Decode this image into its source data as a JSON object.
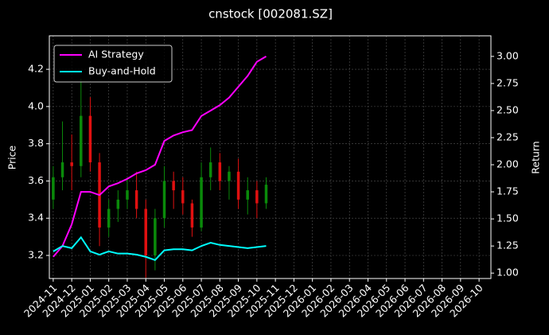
{
  "chart_data": {
    "type": "candlestick",
    "title": "cnstock [002081.SZ]",
    "ylabel": "Price",
    "y2label": "Return",
    "x": [
      0,
      0.5,
      1,
      1.5,
      2,
      2.5,
      3,
      3.5,
      4,
      4.5,
      5,
      5.5,
      6,
      6.5,
      7,
      7.5,
      8,
      8.5,
      9,
      9.5,
      10,
      10.5,
      11,
      11.5
    ],
    "open": [
      3.5,
      3.62,
      3.7,
      3.68,
      3.95,
      3.7,
      3.35,
      3.45,
      3.5,
      3.55,
      3.45,
      3.2,
      3.4,
      3.6,
      3.55,
      3.48,
      3.35,
      3.62,
      3.7,
      3.6,
      3.65,
      3.5,
      3.55,
      3.48
    ],
    "high": [
      3.68,
      3.92,
      3.85,
      4.15,
      4.05,
      3.75,
      3.5,
      3.55,
      3.62,
      3.65,
      3.5,
      3.45,
      3.68,
      3.65,
      3.62,
      3.5,
      3.7,
      3.78,
      3.75,
      3.68,
      3.72,
      3.62,
      3.6,
      3.62
    ],
    "low": [
      3.45,
      3.55,
      3.55,
      3.62,
      3.65,
      3.25,
      3.3,
      3.38,
      3.45,
      3.4,
      3.08,
      3.12,
      3.35,
      3.45,
      3.42,
      3.3,
      3.33,
      3.55,
      3.55,
      3.5,
      3.45,
      3.42,
      3.4,
      3.45
    ],
    "close": [
      3.62,
      3.7,
      3.68,
      3.95,
      3.7,
      3.35,
      3.45,
      3.5,
      3.55,
      3.45,
      3.2,
      3.4,
      3.6,
      3.55,
      3.48,
      3.35,
      3.62,
      3.7,
      3.6,
      3.65,
      3.5,
      3.55,
      3.48,
      3.58
    ],
    "up_color": "#0a8a0a",
    "down_color": "#e01010",
    "series": [
      {
        "name": "AI Strategy",
        "color": "#ff00ff",
        "axis": "y2",
        "values": [
          1.15,
          1.25,
          1.45,
          1.75,
          1.75,
          1.72,
          1.8,
          1.83,
          1.87,
          1.92,
          1.95,
          2.0,
          2.22,
          2.27,
          2.3,
          2.32,
          2.45,
          2.5,
          2.55,
          2.62,
          2.72,
          2.82,
          2.95,
          3.0
        ]
      },
      {
        "name": "Buy-and-Hold",
        "color": "#00ffff",
        "axis": "y2",
        "values": [
          1.2,
          1.25,
          1.23,
          1.33,
          1.2,
          1.17,
          1.2,
          1.18,
          1.18,
          1.17,
          1.15,
          1.12,
          1.21,
          1.22,
          1.22,
          1.21,
          1.25,
          1.28,
          1.26,
          1.25,
          1.24,
          1.23,
          1.24,
          1.25
        ]
      }
    ],
    "xlim": [
      -0.21,
      23.64
    ],
    "xticks": [
      {
        "value": 0,
        "label": "2024-11"
      },
      {
        "value": 1,
        "label": "2024-12"
      },
      {
        "value": 2,
        "label": "2025-01"
      },
      {
        "value": 3,
        "label": "2025-02"
      },
      {
        "value": 4,
        "label": "2025-03"
      },
      {
        "value": 5,
        "label": "2025-04"
      },
      {
        "value": 6,
        "label": "2025-05"
      },
      {
        "value": 7,
        "label": "2025-06"
      },
      {
        "value": 8,
        "label": "2025-07"
      },
      {
        "value": 9,
        "label": "2025-08"
      },
      {
        "value": 10,
        "label": "2025-09"
      },
      {
        "value": 11,
        "label": "2025-10"
      },
      {
        "value": 12,
        "label": "2025-11"
      },
      {
        "value": 13,
        "label": "2025-12"
      },
      {
        "value": 14,
        "label": "2026-01"
      },
      {
        "value": 15,
        "label": "2026-02"
      },
      {
        "value": 16,
        "label": "2026-03"
      },
      {
        "value": 17,
        "label": "2026-04"
      },
      {
        "value": 18,
        "label": "2026-05"
      },
      {
        "value": 19,
        "label": "2026-06"
      },
      {
        "value": 20,
        "label": "2026-07"
      },
      {
        "value": 21,
        "label": "2026-08"
      },
      {
        "value": 22,
        "label": "2026-09"
      },
      {
        "value": 23,
        "label": "2026-10"
      }
    ],
    "ylim": [
      3.076,
      4.38
    ],
    "yticks": [
      3.2,
      3.4,
      3.6,
      3.8,
      {
        "value": 4,
        "label": "4.0"
      },
      4.2
    ],
    "y2lim": [
      0.95,
      3.19
    ],
    "y2ticks": [
      {
        "value": 1,
        "label": "1.00"
      },
      {
        "value": 1.25,
        "label": "1.25"
      },
      {
        "value": 1.5,
        "label": "1.50"
      },
      {
        "value": 1.75,
        "label": "1.75"
      },
      {
        "value": 2,
        "label": "2.00"
      },
      {
        "value": 2.25,
        "label": "2.25"
      },
      {
        "value": 2.5,
        "label": "2.50"
      },
      {
        "value": 2.75,
        "label": "2.75"
      },
      {
        "value": 3,
        "label": "3.00"
      }
    ],
    "grid": true,
    "legend": "upper left"
  }
}
